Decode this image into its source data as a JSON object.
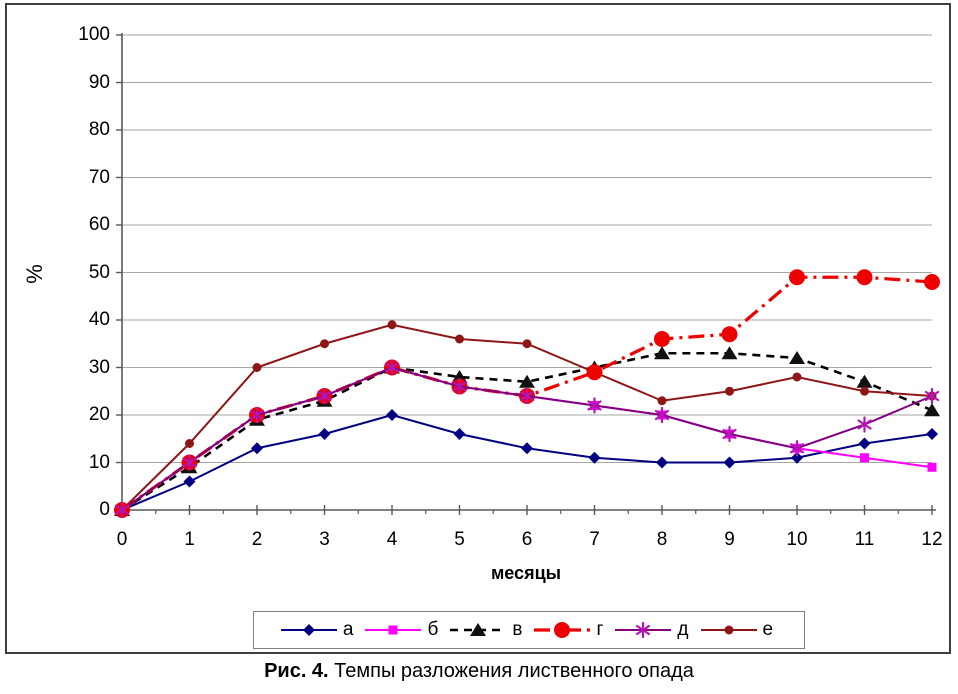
{
  "figure": {
    "caption_prefix": "Рис. 4.",
    "caption_text": " Темпы разложения лиственного опада"
  },
  "axes": {
    "y_axis_title": "%",
    "x_axis_title": "месяцы"
  },
  "colors": {
    "gridline": "#a6a6a6",
    "axis": "#595959",
    "legend_border": "#7f7f7f"
  },
  "chart_data": {
    "type": "line",
    "x": [
      0,
      1,
      2,
      3,
      4,
      5,
      6,
      7,
      8,
      9,
      10,
      11,
      12
    ],
    "xlabel": "месяцы",
    "ylabel": "%",
    "xlim": [
      0,
      12
    ],
    "ylim": [
      0,
      100
    ],
    "ytick_step": 10,
    "grid": true,
    "legend_position": "bottom",
    "series": [
      {
        "name": "а",
        "color": "#000080",
        "marker": "diamond",
        "marker_color": "#000080",
        "line": "solid",
        "values": [
          0,
          6,
          13,
          16,
          20,
          16,
          13,
          11,
          10,
          10,
          11,
          14,
          16
        ]
      },
      {
        "name": "б",
        "color": "#ff00ff",
        "marker": "square",
        "marker_color": "#ff00ff",
        "line": "solid",
        "values": [
          0,
          10,
          20,
          24,
          30,
          26,
          24,
          22,
          20,
          16,
          13,
          11,
          9
        ]
      },
      {
        "name": "в",
        "color": "#000000",
        "marker": "triangle",
        "marker_color": "#111111",
        "line": "dashed",
        "values": [
          0,
          9,
          19,
          23,
          30,
          28,
          27,
          30,
          33,
          33,
          32,
          27,
          21
        ]
      },
      {
        "name": "г",
        "color": "#ee0000",
        "marker": "circle-large",
        "marker_color": "#ee0000",
        "line": "dashdot",
        "values": [
          0,
          10,
          20,
          24,
          30,
          26,
          24,
          29,
          36,
          37,
          49,
          49,
          48
        ]
      },
      {
        "name": "д",
        "color": "#800080",
        "marker": "asterisk",
        "marker_color": "#b514b5",
        "line": "solid",
        "values": [
          0,
          10,
          20,
          24,
          30,
          26,
          24,
          22,
          20,
          16,
          13,
          18,
          24
        ]
      },
      {
        "name": "е",
        "color": "#8f1616",
        "marker": "circle",
        "marker_color": "#8f1616",
        "line": "solid",
        "values": [
          0,
          14,
          30,
          35,
          39,
          36,
          35,
          29,
          23,
          25,
          28,
          25,
          24
        ]
      }
    ]
  }
}
